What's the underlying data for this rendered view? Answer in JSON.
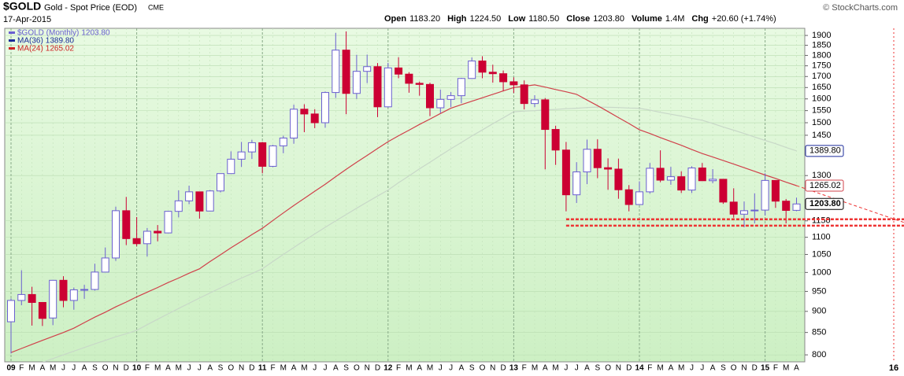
{
  "chart_data": {
    "type": "candlestick",
    "symbol": "$GOLD",
    "title": "Gold - Spot Price (EOD)",
    "exchange": "CME",
    "date": "17-Apr-2015",
    "header_stats": [
      {
        "label": "Open",
        "value": "1183.20"
      },
      {
        "label": "High",
        "value": "1224.50"
      },
      {
        "label": "Low",
        "value": "1180.50"
      },
      {
        "label": "Close",
        "value": "1203.80"
      },
      {
        "label": "Volume",
        "value": "1.4M"
      },
      {
        "label": "Chg",
        "value": "+20.60 (+1.74%)"
      }
    ],
    "credit": "© StockCharts.com",
    "log_scale": true,
    "grid": true,
    "ylim": [
      785,
      1937
    ],
    "yticks": [
      800,
      850,
      900,
      950,
      1000,
      1050,
      1100,
      1150,
      1300,
      1450,
      1500,
      1550,
      1600,
      1650,
      1700,
      1750,
      1800,
      1850,
      1900
    ],
    "categories": [
      "09",
      "F",
      "M",
      "A",
      "M",
      "J",
      "J",
      "A",
      "S",
      "O",
      "N",
      "D",
      "10",
      "F",
      "M",
      "A",
      "M",
      "J",
      "J",
      "A",
      "S",
      "O",
      "N",
      "D",
      "11",
      "F",
      "M",
      "A",
      "M",
      "J",
      "J",
      "A",
      "S",
      "O",
      "N",
      "D",
      "12",
      "F",
      "M",
      "A",
      "M",
      "J",
      "J",
      "A",
      "S",
      "O",
      "N",
      "D",
      "13",
      "F",
      "M",
      "A",
      "M",
      "J",
      "J",
      "A",
      "S",
      "O",
      "N",
      "D",
      "14",
      "F",
      "M",
      "A",
      "M",
      "J",
      "J",
      "A",
      "S",
      "O",
      "N",
      "D",
      "15",
      "F",
      "M",
      "A"
    ],
    "future_label": "16",
    "candles": {
      "name": "$GOLD (Monthly)",
      "last_label": "1203.80",
      "up_color": "#6a5fd0",
      "down_color": "#cc0033",
      "open": [
        875,
        927,
        942,
        922,
        884,
        979,
        927,
        954,
        955,
        1001,
        1040,
        1182,
        1096,
        1081,
        1118,
        1113,
        1180,
        1214,
        1244,
        1181,
        1247,
        1307,
        1359,
        1386,
        1421,
        1333,
        1409,
        1439,
        1556,
        1536,
        1500,
        1628,
        1826,
        1624,
        1724,
        1746,
        1566,
        1740,
        1711,
        1669,
        1664,
        1562,
        1598,
        1614,
        1691,
        1773,
        1720,
        1713,
        1676,
        1662,
        1580,
        1596,
        1473,
        1393,
        1234,
        1313,
        1396,
        1328,
        1323,
        1251,
        1202,
        1244,
        1326,
        1284,
        1296,
        1250,
        1327,
        1282,
        1287,
        1210,
        1171,
        1182,
        1184,
        1283,
        1213,
        1183.2
      ],
      "high": [
        932,
        1006,
        962,
        923,
        980,
        990,
        960,
        967,
        1024,
        1070,
        1195,
        1227,
        1162,
        1128,
        1137,
        1181,
        1249,
        1265,
        1245,
        1250,
        1308,
        1388,
        1424,
        1432,
        1424,
        1413,
        1448,
        1575,
        1577,
        1556,
        1632,
        1913,
        1921,
        1803,
        1804,
        1763,
        1764,
        1791,
        1720,
        1677,
        1672,
        1641,
        1630,
        1694,
        1790,
        1796,
        1755,
        1728,
        1696,
        1682,
        1616,
        1604,
        1488,
        1424,
        1348,
        1433,
        1434,
        1362,
        1361,
        1267,
        1280,
        1345,
        1392,
        1331,
        1315,
        1333,
        1345,
        1323,
        1287,
        1256,
        1212,
        1239,
        1308,
        1284,
        1220,
        1224.5
      ],
      "low": [
        803,
        915,
        866,
        865,
        867,
        910,
        904,
        931,
        952,
        1001,
        1032,
        1077,
        1074,
        1044,
        1088,
        1113,
        1161,
        1203,
        1157,
        1180,
        1242,
        1313,
        1331,
        1360,
        1308,
        1330,
        1381,
        1417,
        1462,
        1478,
        1480,
        1604,
        1535,
        1600,
        1670,
        1523,
        1563,
        1692,
        1627,
        1614,
        1527,
        1540,
        1565,
        1582,
        1690,
        1692,
        1672,
        1635,
        1626,
        1555,
        1565,
        1322,
        1338,
        1180,
        1207,
        1270,
        1291,
        1251,
        1221,
        1180,
        1200,
        1238,
        1277,
        1268,
        1240,
        1240,
        1281,
        1273,
        1204,
        1160,
        1130,
        1142,
        1167,
        1191,
        1142,
        1180.5
      ],
      "close": [
        927,
        942,
        922,
        883,
        979,
        927,
        954,
        955,
        1001,
        1040,
        1182,
        1096,
        1081,
        1118,
        1113,
        1180,
        1214,
        1244,
        1181,
        1247,
        1307,
        1359,
        1386,
        1421,
        1333,
        1409,
        1439,
        1556,
        1536,
        1500,
        1628,
        1826,
        1624,
        1724,
        1746,
        1566,
        1740,
        1711,
        1669,
        1664,
        1562,
        1598,
        1614,
        1691,
        1773,
        1720,
        1713,
        1676,
        1662,
        1580,
        1596,
        1473,
        1393,
        1234,
        1313,
        1396,
        1328,
        1323,
        1251,
        1202,
        1244,
        1326,
        1284,
        1296,
        1250,
        1327,
        1282,
        1287,
        1210,
        1171,
        1182,
        1184,
        1283,
        1213,
        1183,
        1203.8
      ]
    },
    "series": [
      {
        "name": "MA(36)",
        "last_label": "1389.80",
        "color": "#c8d8c8",
        "legend_color": "#1a2a9a",
        "values": [
          760,
          768,
          776,
          784,
          792,
          800,
          808,
          816,
          824,
          832,
          840,
          847,
          855,
          868,
          881,
          894,
          907,
          920,
          933,
          946,
          959,
          972,
          985,
          997,
          1010,
          1030,
          1050,
          1070,
          1090,
          1110,
          1130,
          1150,
          1170,
          1190,
          1210,
          1230,
          1250,
          1275,
          1299,
          1324,
          1348,
          1373,
          1398,
          1422,
          1447,
          1471,
          1496,
          1520,
          1545,
          1548,
          1550,
          1553,
          1555,
          1558,
          1560,
          1563,
          1565,
          1564,
          1563,
          1561,
          1560,
          1552,
          1543,
          1535,
          1527,
          1518,
          1510,
          1497,
          1483,
          1470,
          1457,
          1443,
          1430,
          1417,
          1403,
          1389.8
        ]
      },
      {
        "name": "MA(24)",
        "last_label": "1265.02",
        "color": "#d0404a",
        "legend_color": "#cc2222",
        "values": [
          805,
          814,
          823,
          832,
          841,
          850,
          860,
          873,
          886,
          898,
          911,
          923,
          936,
          948,
          960,
          973,
          985,
          998,
          1010,
          1030,
          1049,
          1069,
          1088,
          1108,
          1127,
          1151,
          1175,
          1199,
          1222,
          1246,
          1270,
          1296,
          1322,
          1348,
          1373,
          1399,
          1425,
          1448,
          1470,
          1493,
          1515,
          1538,
          1560,
          1575,
          1590,
          1605,
          1620,
          1635,
          1650,
          1656,
          1662,
          1652,
          1641,
          1631,
          1620,
          1595,
          1571,
          1546,
          1521,
          1497,
          1472,
          1457,
          1441,
          1426,
          1411,
          1395,
          1380,
          1367,
          1354,
          1341,
          1328,
          1315,
          1302,
          1290,
          1277,
          1265.02
        ]
      }
    ],
    "support_levels": [
      1155,
      1135
    ],
    "projection_end": 1145,
    "annotation_color": "#ee3333"
  }
}
